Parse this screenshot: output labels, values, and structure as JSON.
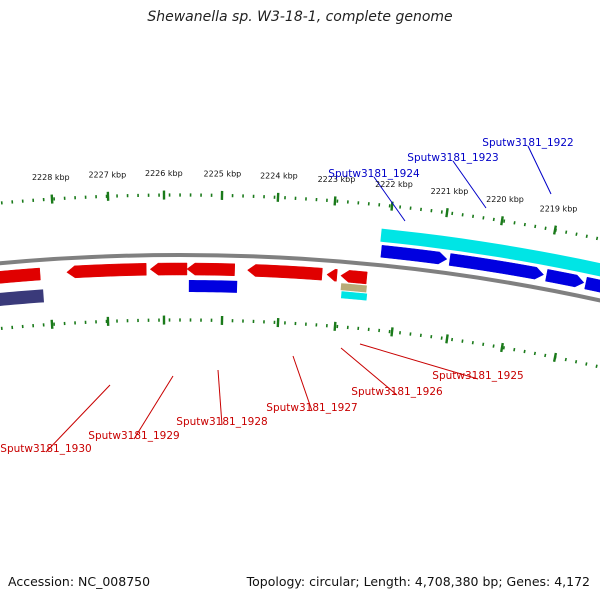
{
  "title": "Shewanella sp. W3-18-1, complete genome",
  "footer": {
    "accession": "Accession: NC_008750",
    "summary": "Topology: circular; Length: 4,708,380 bp; Genes: 4,172"
  },
  "colors": {
    "backbone": "#808080",
    "forward_cds": "#0000e0",
    "reverse_cds": "#e00000",
    "forward_feature": "#00e5e5",
    "other_feature": "#b8ab78",
    "dark_feature": "#3a3a7a",
    "ticks": "#1a7a1a",
    "forward_label": "#0000c8",
    "reverse_label": "#c80000"
  },
  "scale_ticks": [
    "2219 kbp",
    "2220 kbp",
    "2221 kbp",
    "2222 kbp",
    "2223 kbp",
    "2224 kbp",
    "2225 kbp",
    "2226 kbp",
    "2227 kbp",
    "2228 kbp"
  ],
  "forward_genes": [
    "Sputw3181_1922",
    "Sputw3181_1923",
    "Sputw3181_1924"
  ],
  "reverse_genes": [
    "Sputw3181_1925",
    "Sputw3181_1926",
    "Sputw3181_1927",
    "Sputw3181_1928",
    "Sputw3181_1929",
    "Sputw3181_1930"
  ]
}
